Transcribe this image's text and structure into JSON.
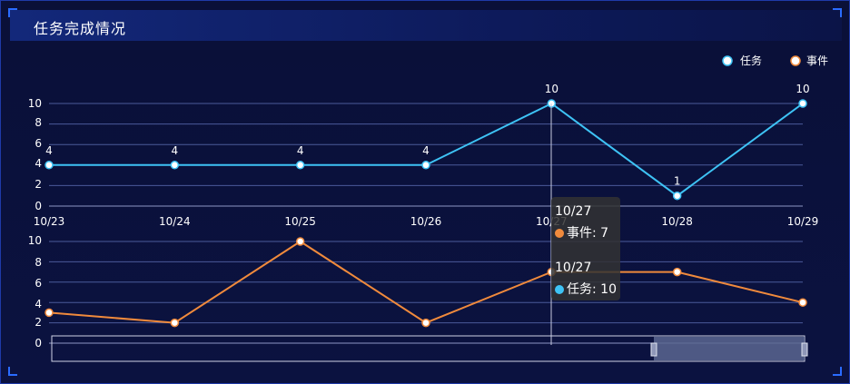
{
  "header": {
    "title": "任务完成情况"
  },
  "legend": [
    {
      "name": "任务",
      "color": "#3ec3f5"
    },
    {
      "name": "事件",
      "color": "#f08a3c"
    }
  ],
  "tooltip": {
    "block1": {
      "date": "10/27",
      "series": "事件",
      "value": "7",
      "color": "#f08a3c"
    },
    "block2": {
      "date": "10/27",
      "series": "任务",
      "value": "10",
      "color": "#3ec3f5"
    }
  },
  "chart_data": [
    {
      "type": "line",
      "categories": [
        "10/23",
        "10/24",
        "10/25",
        "10/26",
        "10/27",
        "10/28",
        "10/29"
      ],
      "series": [
        {
          "name": "任务",
          "values": [
            4,
            4,
            4,
            4,
            10,
            1,
            10
          ],
          "color": "#3ec3f5"
        }
      ],
      "yticks": [
        0,
        2,
        4,
        6,
        8,
        10
      ],
      "ylim": [
        0,
        10
      ],
      "grid": true,
      "data_labels": true
    },
    {
      "type": "line",
      "categories": [
        "10/23",
        "10/24",
        "10/25",
        "10/26",
        "10/27",
        "10/28",
        "10/29"
      ],
      "series": [
        {
          "name": "事件",
          "values": [
            3,
            2,
            10,
            2,
            7,
            7,
            4
          ],
          "color": "#f08a3c"
        }
      ],
      "yticks": [
        0,
        2,
        4,
        6,
        8,
        10
      ],
      "ylim": [
        0,
        10
      ],
      "grid": true,
      "data_labels": false
    }
  ]
}
